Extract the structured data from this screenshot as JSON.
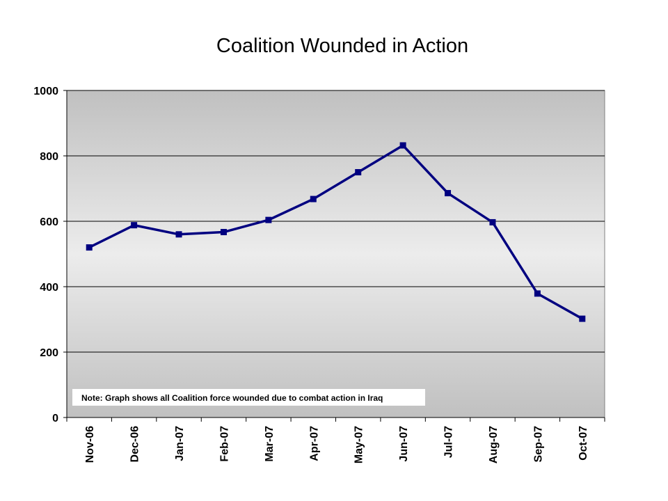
{
  "chart_data": {
    "type": "line",
    "title": "Coalition Wounded in Action",
    "categories": [
      "Nov-06",
      "Dec-06",
      "Jan-07",
      "Feb-07",
      "Mar-07",
      "Apr-07",
      "May-07",
      "Jun-07",
      "Jul-07",
      "Aug-07",
      "Sep-07",
      "Oct-07"
    ],
    "series": [
      {
        "values": [
          520,
          588,
          560,
          567,
          604,
          668,
          750,
          832,
          686,
          597,
          379,
          302
        ]
      }
    ],
    "ylim": [
      0,
      1000
    ],
    "yticks": [
      0,
      200,
      400,
      600,
      800,
      1000
    ],
    "grid": true,
    "legend": "none",
    "annotation": "Note: Graph shows all Coalition force wounded due to combat action in Iraq",
    "colors": {
      "line": "#000080",
      "marker": "#000080",
      "plot_top": "#c0c0c0",
      "plot_mid": "#ececec"
    }
  }
}
